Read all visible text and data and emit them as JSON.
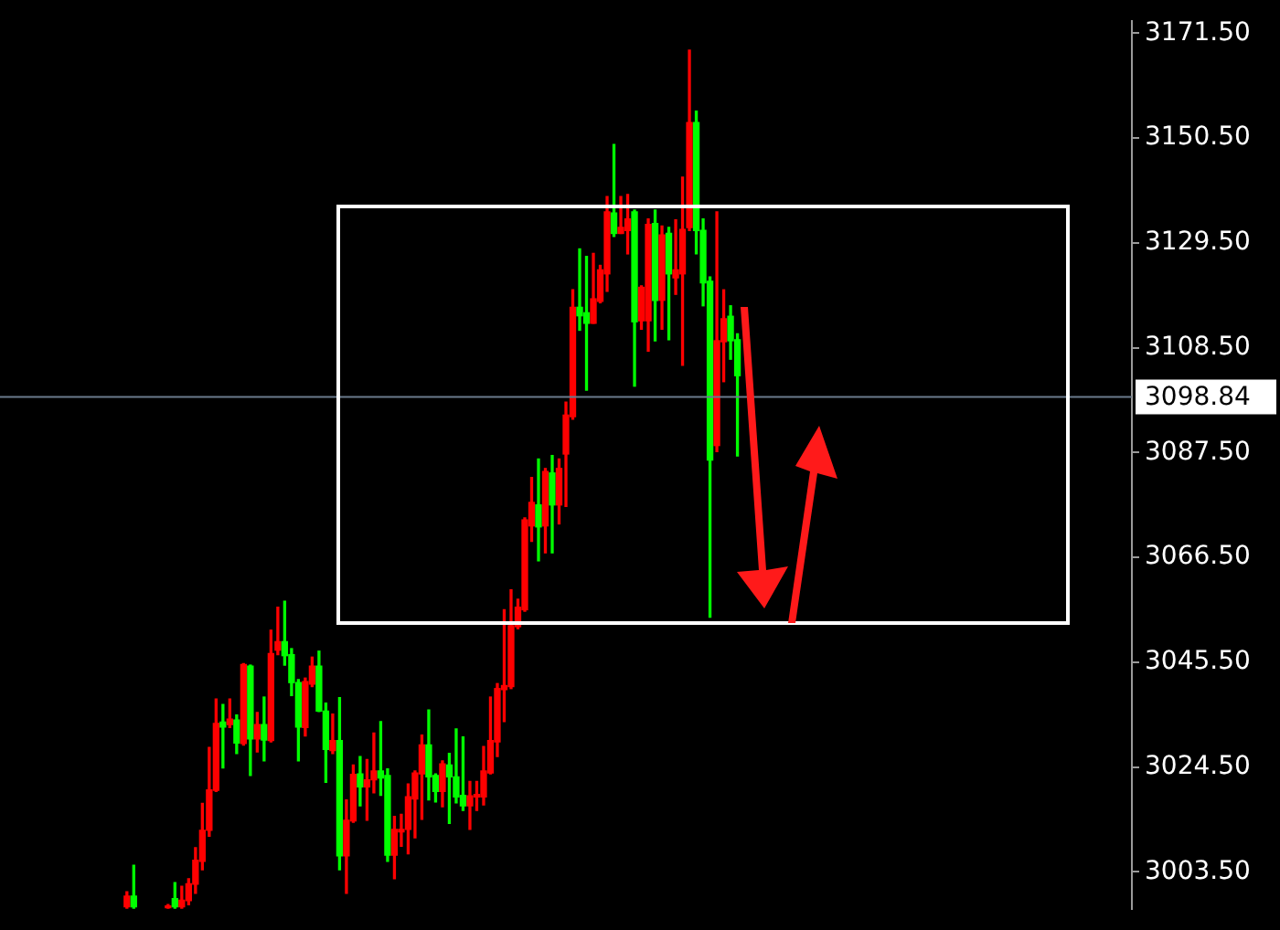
{
  "chart_data": {
    "type": "candlestick",
    "categories": [
      null,
      null,
      null,
      null,
      null,
      null,
      null,
      null,
      null,
      null,
      null,
      null,
      null,
      null,
      null,
      null,
      null,
      null,
      null,
      null,
      null,
      null,
      null,
      null,
      null,
      null,
      null,
      null,
      null,
      null,
      null,
      null,
      null,
      null,
      null,
      null,
      null,
      null,
      null,
      null,
      null,
      null,
      null,
      null,
      null,
      null,
      null,
      null,
      null,
      null,
      null,
      null,
      null,
      null,
      null,
      null,
      null,
      null,
      null,
      null,
      null,
      null,
      null,
      null,
      null,
      null,
      null,
      null,
      null,
      null,
      null,
      null,
      null,
      null,
      null,
      null,
      null,
      null,
      null,
      null,
      null,
      null,
      null,
      null,
      null,
      null,
      null,
      null,
      null,
      null,
      null,
      null,
      null,
      null,
      null,
      null,
      null,
      null,
      null,
      null,
      null,
      null,
      null,
      null,
      null,
      null,
      null,
      null,
      null,
      null,
      null,
      null,
      null,
      null,
      null,
      null,
      null,
      null,
      null,
      null,
      null,
      null,
      null,
      null,
      null,
      null,
      null,
      null,
      null,
      null,
      null,
      null,
      null,
      null,
      null,
      null,
      null,
      null,
      null,
      null,
      null,
      null,
      null,
      null,
      null,
      null,
      null,
      null,
      null,
      null,
      null,
      null,
      null,
      null,
      null,
      null,
      null,
      null,
      null,
      null,
      null,
      null,
      null,
      null,
      null
    ],
    "ohlc": [
      null,
      null,
      null,
      null,
      null,
      null,
      null,
      null,
      null,
      null,
      null,
      null,
      null,
      null,
      null,
      null,
      null,
      null,
      [
        2996.5,
        2999.5,
        2996.2,
        2998.6
      ],
      [
        2998.6,
        3004.8,
        2996.2,
        2996.5
      ],
      null,
      null,
      null,
      null,
      [
        2996.3,
        2996.9,
        2996.2,
        2996.6
      ],
      [
        2998.1,
        3001.3,
        2996.2,
        2996.5
      ],
      [
        2996.5,
        3000.6,
        2996.2,
        2997.8
      ],
      [
        2997.7,
        3002.1,
        2996.9,
        3001.1
      ],
      [
        3001.0,
        3008.3,
        2999.2,
        3005.8
      ],
      [
        3005.6,
        3017.2,
        3003.9,
        3011.8
      ],
      [
        3011.8,
        3028.4,
        3010.6,
        3019.9
      ],
      [
        3019.8,
        3038.1,
        3019.6,
        3033.2
      ],
      [
        3033.5,
        3037.0,
        3024.3,
        3032.5
      ],
      [
        3033.0,
        3038.1,
        3032.4,
        3034.1
      ],
      [
        3033.9,
        3034.9,
        3027.2,
        3029.3
      ],
      [
        3029.2,
        3045.2,
        3028.9,
        3045.0
      ],
      [
        3044.7,
        3044.9,
        3022.8,
        3030.1
      ],
      [
        3030.1,
        3035.4,
        3027.5,
        3033.0
      ],
      [
        3033.0,
        3038.5,
        3025.7,
        3029.9
      ],
      [
        3029.8,
        3051.9,
        3029.5,
        3047.2
      ],
      [
        3047.9,
        3056.5,
        3047.0,
        3049.6
      ],
      [
        3049.6,
        3057.7,
        3044.9,
        3046.8
      ],
      [
        3047.0,
        3048.2,
        3038.8,
        3041.4
      ],
      [
        3041.4,
        3042.0,
        3025.7,
        3032.5
      ],
      [
        3032.4,
        3042.3,
        3030.7,
        3041.6
      ],
      [
        3041.1,
        3046.5,
        3040.6,
        3044.7
      ],
      [
        3044.7,
        3047.7,
        3035.6,
        3035.7
      ],
      [
        3035.7,
        3037.3,
        3021.4,
        3028.0
      ],
      [
        3027.8,
        3035.1,
        3027.2,
        3029.8
      ],
      [
        3029.8,
        3038.4,
        3003.9,
        3006.7
      ],
      [
        3006.7,
        3017.9,
        2999.2,
        3013.8
      ],
      [
        3013.7,
        3024.9,
        3013.4,
        3023.0
      ],
      [
        3023.1,
        3026.6,
        3016.7,
        3020.5
      ],
      [
        3020.5,
        3026.0,
        3013.8,
        3021.9
      ],
      [
        3021.9,
        3031.3,
        3019.3,
        3023.7
      ],
      [
        3023.7,
        3033.6,
        3018.8,
        3022.3
      ],
      [
        3022.8,
        3024.1,
        3005.6,
        3006.8
      ],
      [
        3006.8,
        3014.6,
        3002.1,
        3012.0
      ],
      [
        3011.5,
        3015.0,
        3008.6,
        3012.0
      ],
      [
        3012.0,
        3021.1,
        3007.1,
        3018.5
      ],
      [
        3018.1,
        3023.7,
        3010.3,
        3023.3
      ],
      [
        3023.1,
        3030.9,
        3014.0,
        3028.9
      ],
      [
        3028.9,
        3035.9,
        3017.9,
        3022.5
      ],
      [
        3022.8,
        3023.1,
        3017.5,
        3019.6
      ],
      [
        3019.6,
        3025.7,
        3016.5,
        3025.1
      ],
      [
        3024.9,
        3027.2,
        3013.2,
        3022.5
      ],
      [
        3022.5,
        3032.1,
        3017.3,
        3018.5
      ],
      [
        3018.8,
        3030.5,
        3015.8,
        3016.7
      ],
      [
        3016.7,
        3021.6,
        3012.0,
        3018.7
      ],
      [
        3018.5,
        3021.6,
        3015.8,
        3019.0
      ],
      [
        3018.5,
        3028.6,
        3016.9,
        3023.7
      ],
      [
        3023.3,
        3038.5,
        3023.1,
        3029.8
      ],
      [
        3029.5,
        3041.2,
        3026.6,
        3040.2
      ],
      [
        3040.0,
        3056.0,
        3033.6,
        3040.8
      ],
      [
        3040.6,
        3060.0,
        3040.2,
        3052.8
      ],
      [
        3052.6,
        3058.1,
        3052.2,
        3056.5
      ],
      [
        3056.0,
        3074.4,
        3055.7,
        3074.0
      ],
      [
        3072.8,
        3082.5,
        3069.7,
        3077.5
      ],
      [
        3077.0,
        3086.2,
        3065.8,
        3072.6
      ],
      [
        3072.8,
        3084.3,
        3067.4,
        3083.7
      ],
      [
        3083.4,
        3086.9,
        3067.4,
        3077.0
      ],
      [
        3077.0,
        3086.2,
        3073.2,
        3084.3
      ],
      [
        3087.2,
        3097.6,
        3076.7,
        3095.0
      ],
      [
        3094.7,
        3120.1,
        3094.2,
        3116.6
      ],
      [
        3116.6,
        3128.3,
        3112.0,
        3114.9
      ],
      [
        3115.5,
        3126.8,
        3100.0,
        3113.4
      ],
      [
        3113.4,
        3127.4,
        3113.4,
        3118.3
      ],
      [
        3117.8,
        3125.0,
        3117.5,
        3124.1
      ],
      [
        3123.3,
        3138.8,
        3119.8,
        3135.7
      ],
      [
        3135.5,
        3149.2,
        3130.8,
        3131.4
      ],
      [
        3131.4,
        3138.8,
        3131.4,
        3132.6
      ],
      [
        3132.0,
        3139.2,
        3127.3,
        3134.3
      ],
      [
        3135.7,
        3136.1,
        3100.8,
        3113.7
      ],
      [
        3113.9,
        3120.9,
        3112.2,
        3120.6
      ],
      [
        3113.9,
        3134.3,
        3107.8,
        3133.2
      ],
      [
        3133.4,
        3136.1,
        3109.9,
        3118.0
      ],
      [
        3118.0,
        3132.9,
        3112.2,
        3131.1
      ],
      [
        3131.4,
        3132.6,
        3110.1,
        3123.3
      ],
      [
        3122.5,
        3134.1,
        3119.2,
        3124.1
      ],
      [
        3123.3,
        3142.7,
        3105.0,
        3132.2
      ],
      [
        3132.6,
        3168.1,
        3132.0,
        3153.6
      ],
      [
        3153.6,
        3155.9,
        3127.3,
        3132.0
      ],
      [
        3132.0,
        3134.3,
        3116.9,
        3121.5
      ],
      [
        3121.8,
        3122.7,
        3054.5,
        3086.0
      ],
      [
        3088.9,
        3135.7,
        3087.7,
        3109.9
      ],
      [
        3109.7,
        3120.1,
        3101.7,
        3114.3
      ],
      [
        3114.8,
        3116.9,
        3106.2,
        3109.9
      ],
      [
        3110.1,
        3111.3,
        3086.8,
        3102.9
      ],
      null,
      null,
      null,
      null,
      null,
      null,
      null,
      null,
      null,
      null,
      null,
      null,
      null,
      null,
      null,
      null,
      null,
      null,
      null,
      null,
      null,
      null,
      null,
      null,
      null,
      null,
      null,
      null,
      null,
      null,
      null,
      null,
      null,
      null,
      null,
      null,
      null,
      null,
      null,
      null,
      null,
      null,
      null,
      null,
      null,
      null,
      null,
      null,
      null,
      null,
      null,
      null,
      null,
      null,
      null,
      null,
      null
    ],
    "colors": [
      null,
      null,
      null,
      null,
      null,
      null,
      null,
      null,
      null,
      null,
      null,
      null,
      null,
      null,
      null,
      null,
      null,
      null,
      "#ff0000",
      "#00ff00",
      null,
      null,
      null,
      null,
      "#ff0000",
      "#00ff00",
      "#ff0000",
      "#ff0000",
      "#ff0000",
      "#ff0000",
      "#ff0000",
      "#ff0000",
      "#00ff00",
      "#ff0000",
      "#00ff00",
      "#ff0000",
      "#00ff00",
      "#ff0000",
      "#00ff00",
      "#ff0000",
      "#ff0000",
      "#00ff00",
      "#00ff00",
      "#00ff00",
      "#ff0000",
      "#ff0000",
      "#00ff00",
      "#00ff00",
      "#ff0000",
      "#00ff00",
      "#ff0000",
      "#ff0000",
      "#00ff00",
      "#ff0000",
      "#ff0000",
      "#00ff00",
      "#00ff00",
      "#ff0000",
      "#ff0000",
      "#ff0000",
      "#ff0000",
      "#ff0000",
      "#00ff00",
      "#00ff00",
      "#ff0000",
      "#00ff00",
      "#00ff00",
      "#00ff00",
      "#ff0000",
      "#ff0000",
      "#ff0000",
      "#ff0000",
      "#ff0000",
      "#ff0000",
      "#ff0000",
      "#ff0000",
      "#ff0000",
      "#ff0000",
      "#00ff00",
      "#ff0000",
      "#00ff00",
      "#ff0000",
      "#ff0000",
      "#ff0000",
      "#00ff00",
      "#00ff00",
      "#ff0000",
      "#ff0000",
      "#ff0000",
      "#00ff00",
      "#ff0000",
      "#ff0000",
      "#00ff00",
      "#ff0000",
      "#ff0000",
      "#00ff00",
      "#ff0000",
      "#00ff00",
      "#ff0000",
      "#ff0000",
      "#ff0000",
      "#00ff00",
      "#00ff00",
      "#00ff00",
      "#ff0000",
      "#ff0000",
      "#00ff00",
      "#00ff00",
      null,
      null,
      null,
      null,
      null,
      null,
      null,
      null,
      null,
      null,
      null,
      null,
      null,
      null,
      null,
      null,
      null,
      null,
      null,
      null,
      null,
      null,
      null,
      null,
      null,
      null,
      null,
      null,
      null,
      null,
      null,
      null,
      null,
      null,
      null,
      null,
      null,
      null,
      null,
      null,
      null,
      null,
      null,
      null,
      null,
      null,
      null,
      null,
      null,
      null,
      null,
      null,
      null,
      null,
      null,
      null,
      null
    ],
    "ylim": [
      2996,
      3174
    ],
    "yticks": [
      {
        "value": 3003.5,
        "label": "3003.50"
      },
      {
        "value": 3024.5,
        "label": "3024.50"
      },
      {
        "value": 3045.5,
        "label": "3045.50"
      },
      {
        "value": 3066.5,
        "label": "3066.50"
      },
      {
        "value": 3087.5,
        "label": "3087.50"
      },
      {
        "value": 3108.5,
        "label": "3108.50"
      },
      {
        "value": 3129.5,
        "label": "3129.50"
      },
      {
        "value": 3150.5,
        "label": "3150.50"
      },
      {
        "value": 3171.5,
        "label": "3171.50"
      }
    ],
    "ref_lines": [
      {
        "axis": "y",
        "value": 3098.84,
        "label": "3098.84",
        "color": "#6b7b8c"
      }
    ],
    "tick_labels": "y"
  }
}
